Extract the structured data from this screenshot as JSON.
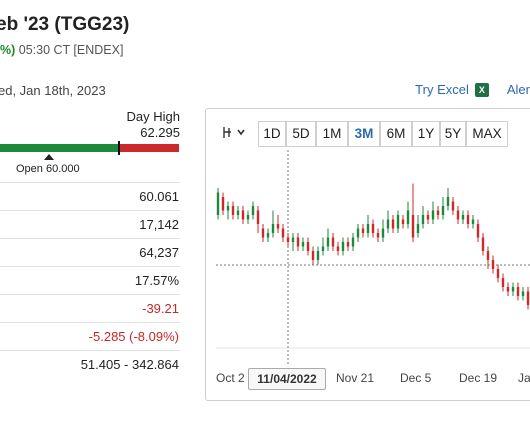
{
  "header": {
    "title": "eb '23 (TGG23)",
    "change_pct": "%)",
    "time": "05:30 CT [ENDEX]",
    "date_line": "ed, Jan 18th, 2023"
  },
  "links": {
    "try_excel": "Try Excel",
    "alerts": "Aler"
  },
  "day_range": {
    "day_high_label": "Day High",
    "day_high_value": "62.295",
    "open_label": "Open 60.000",
    "fill_fraction": 0.66
  },
  "stats": [
    {
      "value": "60.061",
      "trend": "up"
    },
    {
      "value": "17,142",
      "trend": "up"
    },
    {
      "value": "64,237",
      "trend": "up"
    },
    {
      "value": "17.57%",
      "trend": "up"
    },
    {
      "value": "-39.21",
      "trend": "down"
    },
    {
      "value": "-5.285 (-8.09%)",
      "trend": "down"
    },
    {
      "value": "51.405 - 342.864",
      "trend": "up"
    }
  ],
  "chart": {
    "range_buttons": [
      "1D",
      "5D",
      "1M",
      "3M",
      "6M",
      "1Y",
      "5Y",
      "MAX"
    ],
    "active_range": "3M",
    "tool_icon": "crosshair-tool-icon",
    "cursor_date": "11/04/2022",
    "x_labels": [
      "Oct 2",
      "Nov 21",
      "Dec 5",
      "Dec 19",
      "Ja"
    ],
    "colors": {
      "up": "#1d8a3b",
      "down": "#cc2a2a",
      "crosshair": "#555555"
    }
  },
  "chart_data": {
    "type": "candlestick",
    "x_ticks": [
      "Oct 2",
      "Nov 21",
      "Dec 5",
      "Dec 19",
      "Ja"
    ],
    "cursor_date": "11/04/2022",
    "series": [
      {
        "o": 60,
        "c": 65,
        "h": 66,
        "l": 59
      },
      {
        "o": 64,
        "c": 61,
        "h": 65,
        "l": 60
      },
      {
        "o": 61,
        "c": 62,
        "h": 63,
        "l": 59
      },
      {
        "o": 62,
        "c": 60,
        "h": 63,
        "l": 59
      },
      {
        "o": 60,
        "c": 61,
        "h": 62,
        "l": 59
      },
      {
        "o": 61,
        "c": 59,
        "h": 62,
        "l": 58
      },
      {
        "o": 59,
        "c": 60,
        "h": 61,
        "l": 58
      },
      {
        "o": 60,
        "c": 62,
        "h": 63,
        "l": 59
      },
      {
        "o": 61,
        "c": 58,
        "h": 62,
        "l": 56
      },
      {
        "o": 57,
        "c": 55,
        "h": 58,
        "l": 54
      },
      {
        "o": 55,
        "c": 56,
        "h": 57,
        "l": 54
      },
      {
        "o": 56,
        "c": 58,
        "h": 61,
        "l": 55
      },
      {
        "o": 58,
        "c": 57,
        "h": 60,
        "l": 56
      },
      {
        "o": 57,
        "c": 55,
        "h": 58,
        "l": 54
      },
      {
        "o": 55,
        "c": 54,
        "h": 56,
        "l": 53
      },
      {
        "o": 54,
        "c": 55,
        "h": 56,
        "l": 52
      },
      {
        "o": 55,
        "c": 53,
        "h": 56,
        "l": 52
      },
      {
        "o": 53,
        "c": 54,
        "h": 55,
        "l": 52
      },
      {
        "o": 54,
        "c": 52,
        "h": 55,
        "l": 51
      },
      {
        "o": 52,
        "c": 50,
        "h": 53,
        "l": 49
      },
      {
        "o": 50,
        "c": 52,
        "h": 53,
        "l": 49
      },
      {
        "o": 52,
        "c": 53,
        "h": 55,
        "l": 51
      },
      {
        "o": 53,
        "c": 55,
        "h": 57,
        "l": 52
      },
      {
        "o": 55,
        "c": 53,
        "h": 56,
        "l": 52
      },
      {
        "o": 53,
        "c": 52,
        "h": 54,
        "l": 51
      },
      {
        "o": 52,
        "c": 54,
        "h": 55,
        "l": 51
      },
      {
        "o": 54,
        "c": 53,
        "h": 55,
        "l": 52
      },
      {
        "o": 53,
        "c": 55,
        "h": 56,
        "l": 52
      },
      {
        "o": 55,
        "c": 57,
        "h": 58,
        "l": 54
      },
      {
        "o": 57,
        "c": 56,
        "h": 58,
        "l": 55
      },
      {
        "o": 56,
        "c": 58,
        "h": 60,
        "l": 55
      },
      {
        "o": 58,
        "c": 56,
        "h": 59,
        "l": 55
      },
      {
        "o": 56,
        "c": 55,
        "h": 57,
        "l": 54
      },
      {
        "o": 55,
        "c": 57,
        "h": 59,
        "l": 54
      },
      {
        "o": 57,
        "c": 59,
        "h": 61,
        "l": 56
      },
      {
        "o": 59,
        "c": 57,
        "h": 60,
        "l": 56
      },
      {
        "o": 57,
        "c": 60,
        "h": 61,
        "l": 56
      },
      {
        "o": 59,
        "c": 58,
        "h": 60,
        "l": 57
      },
      {
        "o": 58,
        "c": 61,
        "h": 63,
        "l": 57
      },
      {
        "o": 60,
        "c": 55,
        "h": 67,
        "l": 54
      },
      {
        "o": 56,
        "c": 58,
        "h": 60,
        "l": 55
      },
      {
        "o": 58,
        "c": 60,
        "h": 62,
        "l": 57
      },
      {
        "o": 60,
        "c": 59,
        "h": 61,
        "l": 58
      },
      {
        "o": 59,
        "c": 61,
        "h": 63,
        "l": 58
      },
      {
        "o": 61,
        "c": 60,
        "h": 62,
        "l": 59
      },
      {
        "o": 60,
        "c": 62,
        "h": 64,
        "l": 59
      },
      {
        "o": 62,
        "c": 64,
        "h": 66,
        "l": 61
      },
      {
        "o": 63,
        "c": 61,
        "h": 64,
        "l": 60
      },
      {
        "o": 61,
        "c": 59,
        "h": 62,
        "l": 58
      },
      {
        "o": 59,
        "c": 60,
        "h": 61,
        "l": 58
      },
      {
        "o": 60,
        "c": 58,
        "h": 61,
        "l": 57
      },
      {
        "o": 58,
        "c": 59,
        "h": 60,
        "l": 57
      },
      {
        "o": 58,
        "c": 55,
        "h": 59,
        "l": 54
      },
      {
        "o": 55,
        "c": 52,
        "h": 56,
        "l": 51
      },
      {
        "o": 52,
        "c": 50,
        "h": 53,
        "l": 48
      },
      {
        "o": 50,
        "c": 48,
        "h": 51,
        "l": 47
      },
      {
        "o": 48,
        "c": 46,
        "h": 49,
        "l": 45
      },
      {
        "o": 46,
        "c": 44,
        "h": 47,
        "l": 43
      },
      {
        "o": 44,
        "c": 43,
        "h": 45,
        "l": 42
      },
      {
        "o": 43,
        "c": 44,
        "h": 45,
        "l": 42
      },
      {
        "o": 44,
        "c": 42,
        "h": 45,
        "l": 41
      },
      {
        "o": 42,
        "c": 43,
        "h": 44,
        "l": 41
      },
      {
        "o": 43,
        "c": 40,
        "h": 44,
        "l": 39
      }
    ],
    "ylim": [
      30,
      70
    ]
  }
}
